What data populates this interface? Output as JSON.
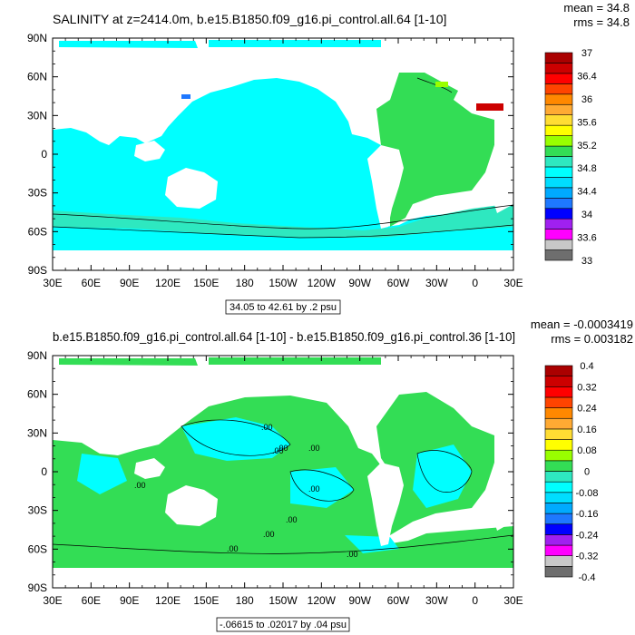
{
  "colors": {
    "land": "#ffffff",
    "panel1_ocean": "#00ffff",
    "panel1_atlantic": "#33dd55",
    "panel1_south_band": "#2ee8c0",
    "panel2_ocean_pos": "#33dd55",
    "panel2_ocean_neg": "#00ffff",
    "contour": "#000000"
  },
  "chart_data": [
    {
      "type": "heatmap",
      "title": "SALINITY at z=2414.0m, b.e15.B1850.f09_g16.pi_control.all.64 [1-10]",
      "stats": {
        "mean": "mean = 34.8",
        "rms": "rms = 34.8"
      },
      "x_ticks": [
        "30E",
        "60E",
        "90E",
        "120E",
        "150E",
        "180",
        "150W",
        "120W",
        "90W",
        "60W",
        "30W",
        "0",
        "30E"
      ],
      "y_ticks": [
        "90N",
        "60N",
        "30N",
        "0",
        "30S",
        "60S",
        "90S"
      ],
      "xlim": [
        30,
        390
      ],
      "ylim": [
        -90,
        90
      ],
      "info_label": "34.05 to 42.61 by .2 psu",
      "colorbar": {
        "colors": [
          "#6e6e6e",
          "#c8c8c8",
          "#ff00ff",
          "#a020f0",
          "#0000ff",
          "#1e78ff",
          "#00aaff",
          "#00ddff",
          "#00ffff",
          "#2ee8c0",
          "#33dd55",
          "#99ff00",
          "#ffff00",
          "#ffdd33",
          "#ffaa33",
          "#ff8800",
          "#ff4400",
          "#ff0000",
          "#cc0000",
          "#aa0000"
        ],
        "labels": [
          "33",
          "33.6",
          "34",
          "34.4",
          "34.8",
          "35.2",
          "35.6",
          "36",
          "36.4",
          "37"
        ]
      }
    },
    {
      "type": "heatmap",
      "title": "b.e15.B1850.f09_g16.pi_control.all.64 [1-10] - b.e15.B1850.f09_g16.pi_control.36 [1-10]",
      "stats": {
        "mean": "mean = -0.0003419",
        "rms": "rms = 0.003182"
      },
      "x_ticks": [
        "30E",
        "60E",
        "90E",
        "120E",
        "150E",
        "180",
        "150W",
        "120W",
        "90W",
        "60W",
        "30W",
        "0",
        "30E"
      ],
      "y_ticks": [
        "90N",
        "60N",
        "30N",
        "0",
        "30S",
        "60S",
        "90S"
      ],
      "xlim": [
        30,
        390
      ],
      "ylim": [
        -90,
        90
      ],
      "info_label": "-.06615 to .02017 by .04 psu",
      "contour_label": ".00",
      "colorbar": {
        "colors": [
          "#6e6e6e",
          "#c8c8c8",
          "#ff00ff",
          "#a020f0",
          "#0000ff",
          "#1e78ff",
          "#00aaff",
          "#00ddff",
          "#00ffff",
          "#2ee8c0",
          "#33dd55",
          "#99ff00",
          "#ffff00",
          "#ffdd33",
          "#ffaa33",
          "#ff8800",
          "#ff4400",
          "#ff0000",
          "#cc0000",
          "#aa0000"
        ],
        "labels": [
          "-0.4",
          "-0.32",
          "-0.24",
          "-0.16",
          "-0.08",
          "0",
          "0.08",
          "0.16",
          "0.24",
          "0.32",
          "0.4"
        ]
      }
    }
  ]
}
